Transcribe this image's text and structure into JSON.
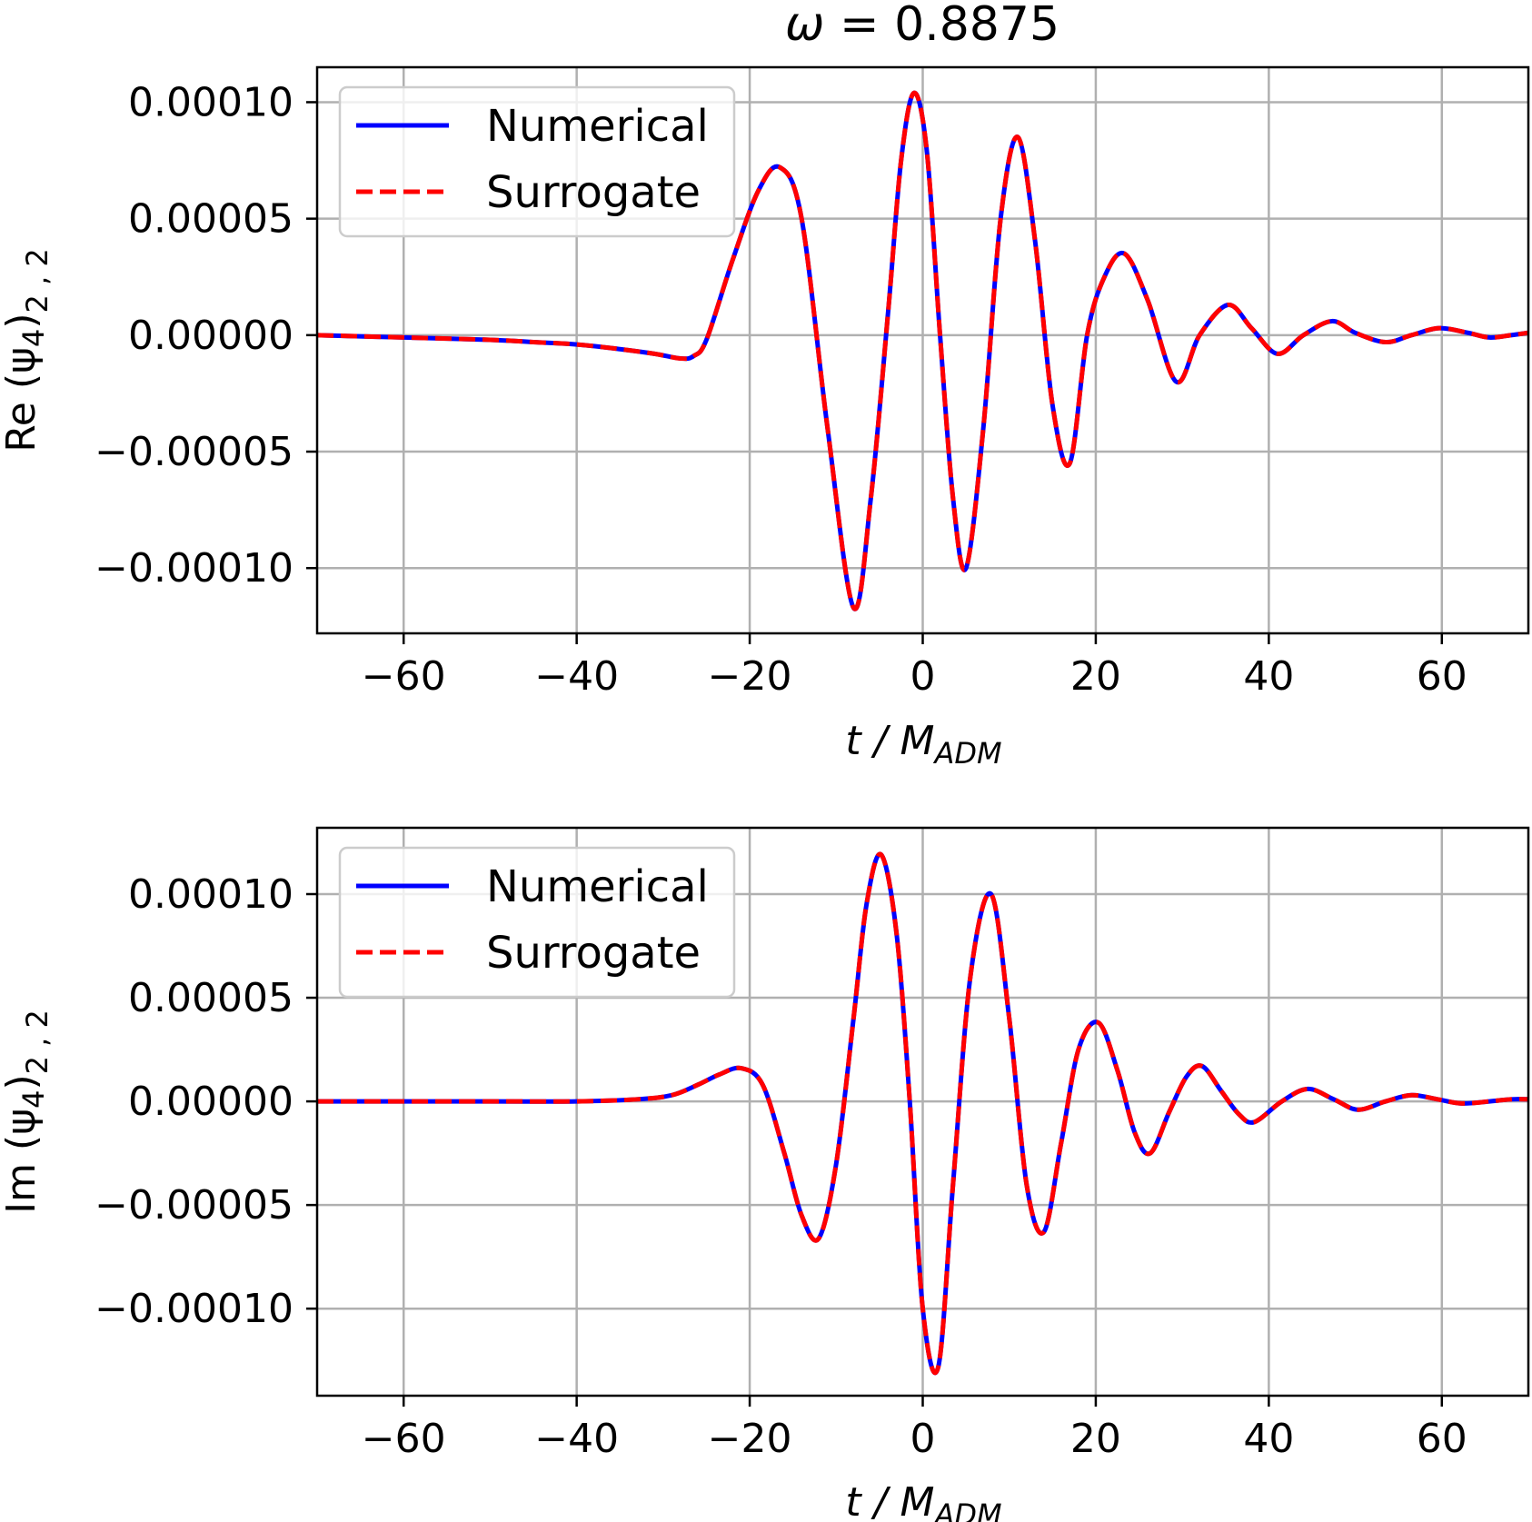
{
  "figure_title_prefix": "ω = ",
  "figure_title_value": "0.8875",
  "chart_data": [
    {
      "type": "line",
      "name": "real-part",
      "ylabel_prefix": "Re (ψ",
      "ylabel_sub": "4",
      "ylabel_suffix": ")",
      "ylabel_lm": "2 , 2",
      "xlabel_main": "t / M",
      "xlabel_sub": "ADM",
      "xlim": [
        -70,
        70
      ],
      "ylim": [
        -0.000128,
        0.000115
      ],
      "xticks": [
        -60,
        -40,
        -20,
        0,
        20,
        40,
        60
      ],
      "xtick_labels": [
        "−60",
        "−40",
        "−20",
        "0",
        "20",
        "40",
        "60"
      ],
      "yticks": [
        0.0001,
        5e-05,
        0.0,
        -5e-05,
        -0.0001
      ],
      "ytick_labels": [
        "0.00010",
        "0.00005",
        "0.00000",
        "−0.00005",
        "−0.00010"
      ],
      "grid": true,
      "legend": {
        "position": "upper-left",
        "entries": [
          {
            "label": "Numerical",
            "color": "#0000ff",
            "style": "solid"
          },
          {
            "label": "Surrogate",
            "color": "#ff0000",
            "style": "dashed"
          }
        ]
      },
      "series": [
        {
          "name": "Numerical",
          "color": "#0000ff",
          "x": [
            -70,
            -60,
            -50,
            -45,
            -40,
            -35,
            -31,
            -28,
            -26.5,
            -25,
            -22,
            -19,
            -16.5,
            -14,
            -11,
            -8,
            -6,
            -4,
            -2.5,
            -1,
            0.5,
            2,
            3.5,
            5,
            7,
            9,
            11,
            13,
            15,
            17,
            19,
            21,
            23.3,
            26,
            29.3,
            32,
            35.3,
            38,
            41,
            44,
            47.3,
            50,
            53.5,
            56.5,
            59.7,
            63,
            65.5,
            68,
            70
          ],
          "y": [
            0.0,
            -1e-06,
            -2e-06,
            -3e-06,
            -4e-06,
            -6e-06,
            -8e-06,
            -1e-05,
            -9e-06,
            -2e-06,
            3.2e-05,
            6.2e-05,
            7.2e-05,
            5e-05,
            -4e-05,
            -0.000117,
            -7e-05,
            1e-05,
            7.5e-05,
            0.000104,
            7.8e-05,
            0.0,
            -7e-05,
            -0.0001,
            -4e-05,
            5e-05,
            8.5e-05,
            4e-05,
            -3e-05,
            -5.5e-05,
            0.0,
            2.5e-05,
            3.5e-05,
            1.5e-05,
            -2e-05,
            0.0,
            1.3e-05,
            3e-06,
            -8e-06,
            0.0,
            6e-06,
            1e-06,
            -3e-06,
            0.0,
            3e-06,
            1e-06,
            -1e-06,
            0.0,
            1e-06
          ]
        },
        {
          "name": "Surrogate",
          "color": "#ff0000",
          "x": [
            -70,
            -60,
            -50,
            -45,
            -40,
            -35,
            -31,
            -28,
            -26.5,
            -25,
            -22,
            -19,
            -16.5,
            -14,
            -11,
            -8,
            -6,
            -4,
            -2.5,
            -1,
            0.5,
            2,
            3.5,
            5,
            7,
            9,
            11,
            13,
            15,
            17,
            19,
            21,
            23.3,
            26,
            29.3,
            32,
            35.3,
            38,
            41,
            44,
            47.3,
            50,
            53.5,
            56.5,
            59.7,
            63,
            65.5,
            68,
            70
          ],
          "y": [
            0.0,
            -1e-06,
            -2e-06,
            -3e-06,
            -4e-06,
            -6e-06,
            -8e-06,
            -1e-05,
            -9e-06,
            -2e-06,
            3.2e-05,
            6.2e-05,
            7.2e-05,
            5e-05,
            -4e-05,
            -0.000117,
            -7e-05,
            1e-05,
            7.5e-05,
            0.000104,
            7.8e-05,
            0.0,
            -7e-05,
            -0.0001,
            -4e-05,
            5e-05,
            8.5e-05,
            4e-05,
            -3e-05,
            -5.5e-05,
            0.0,
            2.5e-05,
            3.5e-05,
            1.5e-05,
            -2e-05,
            0.0,
            1.3e-05,
            3e-06,
            -8e-06,
            0.0,
            6e-06,
            1e-06,
            -3e-06,
            0.0,
            3e-06,
            1e-06,
            -1e-06,
            0.0,
            1e-06
          ]
        }
      ]
    },
    {
      "type": "line",
      "name": "imaginary-part",
      "ylabel_prefix": "Im (ψ",
      "ylabel_sub": "4",
      "ylabel_suffix": ")",
      "ylabel_lm": "2 , 2",
      "xlabel_main": "t / M",
      "xlabel_sub": "ADM",
      "xlim": [
        -70,
        70
      ],
      "ylim": [
        -0.000142,
        0.000132
      ],
      "xticks": [
        -60,
        -40,
        -20,
        0,
        20,
        40,
        60
      ],
      "xtick_labels": [
        "−60",
        "−40",
        "−20",
        "0",
        "20",
        "40",
        "60"
      ],
      "yticks": [
        0.0001,
        5e-05,
        0.0,
        -5e-05,
        -0.0001
      ],
      "ytick_labels": [
        "0.00010",
        "0.00005",
        "0.00000",
        "−0.00005",
        "−0.00010"
      ],
      "grid": true,
      "legend": {
        "position": "upper-left",
        "entries": [
          {
            "label": "Numerical",
            "color": "#0000ff",
            "style": "solid"
          },
          {
            "label": "Surrogate",
            "color": "#ff0000",
            "style": "dashed"
          }
        ]
      },
      "series": [
        {
          "name": "Numerical",
          "color": "#0000ff",
          "x": [
            -70,
            -50,
            -40,
            -33,
            -29,
            -26,
            -23.5,
            -21,
            -18.5,
            -16,
            -14,
            -12,
            -10,
            -8,
            -6.5,
            -4.8,
            -3,
            -1.5,
            0,
            1.8,
            3.5,
            5.5,
            7.9,
            10,
            12,
            14,
            16,
            18,
            20.3,
            22.5,
            24.5,
            26.3,
            28.5,
            30.5,
            32.3,
            34.5,
            36.5,
            38.3,
            41.5,
            44.5,
            47.5,
            50.3,
            53.5,
            56.5,
            59.5,
            62.3,
            65.5,
            68,
            70
          ],
          "y": [
            0.0,
            0.0,
            0.0,
            1e-06,
            3e-06,
            8e-06,
            1.3e-05,
            1.6e-05,
            8e-06,
            -2.5e-05,
            -5.5e-05,
            -6.6e-05,
            -3e-05,
            4e-05,
            9.5e-05,
            0.000119,
            8e-05,
            0.0,
            -0.0001,
            -0.000128,
            -4e-05,
            6e-05,
            0.0001,
            4e-05,
            -4e-05,
            -6.3e-05,
            -2e-05,
            2.5e-05,
            3.8e-05,
            1.5e-05,
            -1.5e-05,
            -2.5e-05,
            -5e-06,
            1.2e-05,
            1.7e-05,
            5e-06,
            -6e-06,
            -1e-05,
            0.0,
            6e-06,
            1e-06,
            -4e-06,
            0.0,
            3e-06,
            1e-06,
            -1e-06,
            0.0,
            1e-06,
            1e-06
          ]
        },
        {
          "name": "Surrogate",
          "color": "#ff0000",
          "x": [
            -70,
            -50,
            -40,
            -33,
            -29,
            -26,
            -23.5,
            -21,
            -18.5,
            -16,
            -14,
            -12,
            -10,
            -8,
            -6.5,
            -4.8,
            -3,
            -1.5,
            0,
            1.8,
            3.5,
            5.5,
            7.9,
            10,
            12,
            14,
            16,
            18,
            20.3,
            22.5,
            24.5,
            26.3,
            28.5,
            30.5,
            32.3,
            34.5,
            36.5,
            38.3,
            41.5,
            44.5,
            47.5,
            50.3,
            53.5,
            56.5,
            59.5,
            62.3,
            65.5,
            68,
            70
          ],
          "y": [
            0.0,
            0.0,
            0.0,
            1e-06,
            3e-06,
            8e-06,
            1.3e-05,
            1.6e-05,
            8e-06,
            -2.5e-05,
            -5.5e-05,
            -6.6e-05,
            -3e-05,
            4e-05,
            9.5e-05,
            0.000119,
            8e-05,
            0.0,
            -0.0001,
            -0.000128,
            -4e-05,
            6e-05,
            0.0001,
            4e-05,
            -4e-05,
            -6.3e-05,
            -2e-05,
            2.5e-05,
            3.8e-05,
            1.5e-05,
            -1.5e-05,
            -2.5e-05,
            -5e-06,
            1.2e-05,
            1.7e-05,
            5e-06,
            -6e-06,
            -1e-05,
            0.0,
            6e-06,
            1e-06,
            -4e-06,
            0.0,
            3e-06,
            1e-06,
            -1e-06,
            0.0,
            1e-06,
            1e-06
          ]
        }
      ]
    }
  ]
}
